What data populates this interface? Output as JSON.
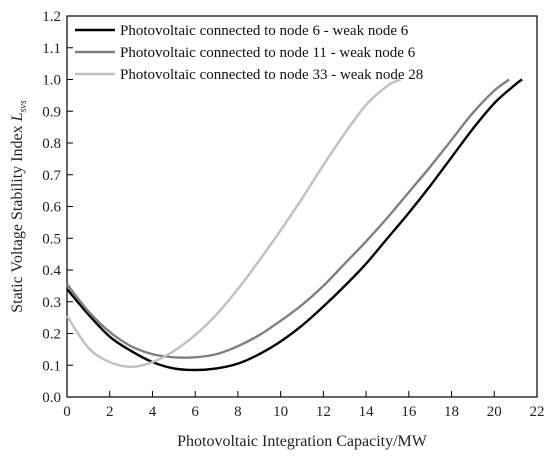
{
  "chart_data": {
    "type": "line",
    "title": "",
    "xlabel": "Photovoltaic Integration Capacity/MW",
    "ylabel_main": "Static Voltage Stability Index ",
    "ylabel_symbol": "L",
    "ylabel_subscript": "svs",
    "xlim": [
      0,
      22
    ],
    "ylim": [
      0,
      1.2
    ],
    "xticks": [
      "0",
      "2",
      "4",
      "6",
      "8",
      "10",
      "12",
      "14",
      "16",
      "18",
      "20",
      "22"
    ],
    "yticks": [
      "0.0",
      "0.1",
      "0.2",
      "0.3",
      "0.4",
      "0.5",
      "0.6",
      "0.7",
      "0.8",
      "0.9",
      "1.0",
      "1.1",
      "1.2"
    ],
    "grid": false,
    "legend_position": "top-left",
    "series": [
      {
        "name": "Photovoltaic connected to node 6 - weak node 6",
        "color": "#000000",
        "x": [
          0,
          1,
          2,
          3,
          4,
          5,
          6,
          7,
          8,
          9,
          10,
          11,
          12,
          13,
          14,
          15,
          16,
          17,
          18,
          19,
          20,
          21,
          21.3
        ],
        "y": [
          0.34,
          0.26,
          0.19,
          0.145,
          0.11,
          0.09,
          0.085,
          0.09,
          0.105,
          0.135,
          0.175,
          0.225,
          0.285,
          0.35,
          0.42,
          0.5,
          0.58,
          0.665,
          0.755,
          0.845,
          0.925,
          0.985,
          1.0
        ]
      },
      {
        "name": "Photovoltaic connected to node 11 - weak node 6",
        "color": "#808080",
        "x": [
          0,
          1,
          2,
          3,
          4,
          5,
          6,
          7,
          8,
          9,
          10,
          11,
          12,
          13,
          14,
          15,
          16,
          17,
          18,
          19,
          20,
          20.7
        ],
        "y": [
          0.355,
          0.27,
          0.205,
          0.16,
          0.135,
          0.125,
          0.125,
          0.135,
          0.16,
          0.195,
          0.24,
          0.29,
          0.35,
          0.42,
          0.49,
          0.565,
          0.645,
          0.725,
          0.81,
          0.895,
          0.965,
          1.0
        ]
      },
      {
        "name": "Photovoltaic connected to node 33 - weak node 28",
        "color": "#c0c0c0",
        "x": [
          0,
          1,
          2,
          3,
          4,
          5,
          6,
          7,
          8,
          9,
          10,
          11,
          12,
          13,
          14,
          15,
          15.6
        ],
        "y": [
          0.255,
          0.155,
          0.11,
          0.095,
          0.11,
          0.145,
          0.195,
          0.26,
          0.34,
          0.43,
          0.525,
          0.625,
          0.73,
          0.83,
          0.92,
          0.98,
          1.0
        ]
      }
    ]
  }
}
